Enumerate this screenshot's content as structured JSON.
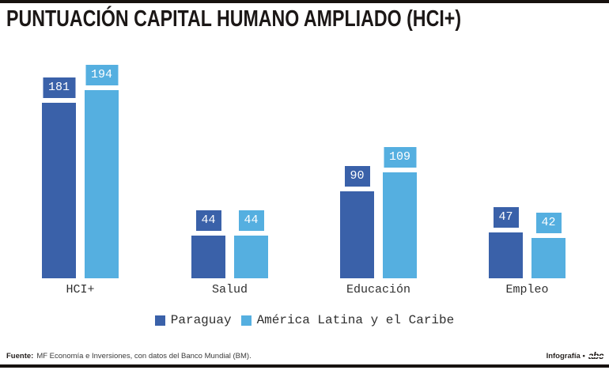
{
  "header": {
    "title": "PUNTUACIÓN CAPITAL HUMANO AMPLIADO (HCI+)"
  },
  "colors": {
    "paraguay": "#3A61A9",
    "latam": "#55AFE0",
    "rule_black": "#17120F",
    "background": "#FFFFFF",
    "value_text": "#FFFFFF"
  },
  "chart_data": {
    "type": "bar",
    "title": "PUNTUACIÓN CAPITAL HUMANO AMPLIADO (HCI+)",
    "categories": [
      "HCI+",
      "Salud",
      "Educación",
      "Empleo"
    ],
    "series": [
      {
        "name": "Paraguay",
        "color": "#3A61A9",
        "values": [
          181,
          44,
          90,
          47
        ]
      },
      {
        "name": "América Latina y el Caribe",
        "color": "#55AFE0",
        "values": [
          194,
          44,
          109,
          42
        ]
      }
    ],
    "xlabel": "",
    "ylabel": "",
    "ylim": [
      0,
      200
    ],
    "grid": false,
    "value_labels": true,
    "legend_position": "bottom"
  },
  "legend": {
    "items": [
      {
        "label": "Paraguay",
        "color": "#3A61A9"
      },
      {
        "label": "América Latina y el Caribe",
        "color": "#55AFE0"
      }
    ]
  },
  "footer": {
    "source_label": "Fuente:",
    "source_text": "MF Economía e Inversiones, con datos del Banco Mundial (BM).",
    "credit_label": "Infografía •",
    "logo_text": "abc"
  }
}
